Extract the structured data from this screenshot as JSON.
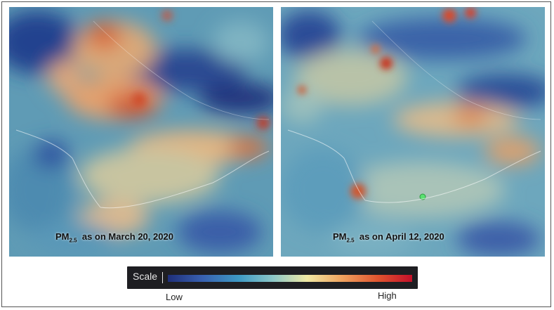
{
  "panels": {
    "left": {
      "pollutant": "PM",
      "subscript": "2.5",
      "caption_text": "as on March 20, 2020"
    },
    "right": {
      "pollutant": "PM",
      "subscript": "2.5",
      "caption_text": "as on April 12, 2020"
    }
  },
  "scale": {
    "label": "Scale",
    "low_label": "Low",
    "high_label": "High",
    "colors": [
      "#1f2f7a",
      "#3860b0",
      "#3d99c4",
      "#8cc7c8",
      "#f1e9a4",
      "#f0a460",
      "#e0542f",
      "#c4102a"
    ]
  }
}
